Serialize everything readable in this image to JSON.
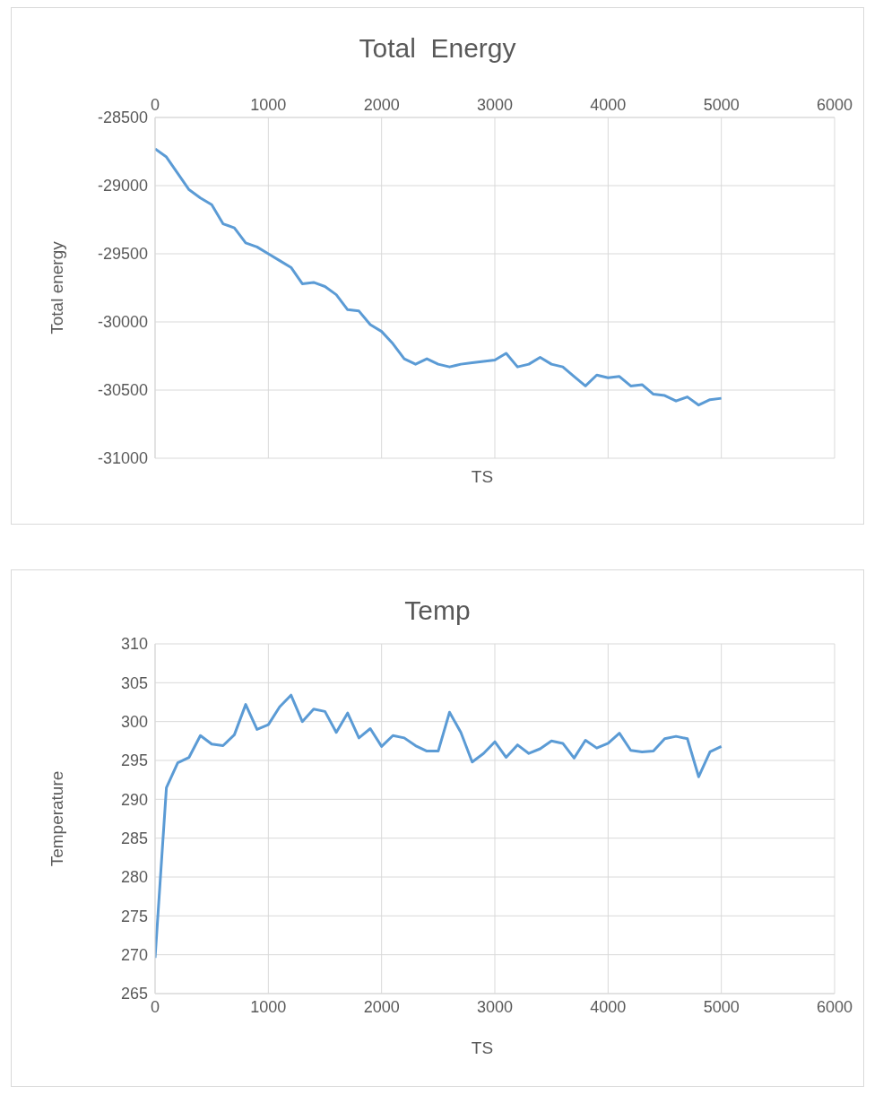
{
  "chart_data": [
    {
      "type": "line",
      "title": "Total  Energy",
      "xlabel": "TS",
      "ylabel": "Total energy",
      "x": [
        0,
        100,
        200,
        300,
        400,
        500,
        600,
        700,
        800,
        900,
        1000,
        1100,
        1200,
        1300,
        1400,
        1500,
        1600,
        1700,
        1800,
        1900,
        2000,
        2100,
        2200,
        2300,
        2400,
        2500,
        2600,
        2700,
        2800,
        2900,
        3000,
        3100,
        3200,
        3300,
        3400,
        3500,
        3600,
        3700,
        3800,
        3900,
        4000,
        4100,
        4200,
        4300,
        4400,
        4500,
        4600,
        4700,
        4800,
        4900,
        5000
      ],
      "series": [
        {
          "color": "#5b9bd5",
          "values": [
            -28730,
            -28790,
            -28910,
            -29030,
            -29090,
            -29140,
            -29280,
            -29310,
            -29420,
            -29450,
            -29500,
            -29550,
            -29600,
            -29720,
            -29710,
            -29740,
            -29800,
            -29910,
            -29920,
            -30020,
            -30070,
            -30160,
            -30270,
            -30310,
            -30270,
            -30310,
            -30330,
            -30310,
            -30300,
            -30290,
            -30280,
            -30230,
            -30330,
            -30310,
            -30260,
            -30310,
            -30330,
            -30400,
            -30470,
            -30390,
            -30410,
            -30400,
            -30470,
            -30460,
            -30530,
            -30540,
            -30580,
            -30550,
            -30610,
            -30570,
            -30560
          ]
        }
      ],
      "xlim": [
        0,
        6000
      ],
      "xticks": [
        0,
        1000,
        2000,
        3000,
        4000,
        5000,
        6000
      ],
      "ylim": [
        -31000,
        -28500
      ],
      "yticks": [
        -31000,
        -30500,
        -30000,
        -29500,
        -29000,
        -28500
      ],
      "grid": true,
      "legend": false,
      "marker": "none",
      "line_style": "solid"
    },
    {
      "type": "line",
      "title": "Temp",
      "xlabel": "TS",
      "ylabel": "Temperature",
      "x": [
        0,
        100,
        200,
        300,
        400,
        500,
        600,
        700,
        800,
        900,
        1000,
        1100,
        1200,
        1300,
        1400,
        1500,
        1600,
        1700,
        1800,
        1900,
        2000,
        2100,
        2200,
        2300,
        2400,
        2500,
        2600,
        2700,
        2800,
        2900,
        3000,
        3100,
        3200,
        3300,
        3400,
        3500,
        3600,
        3700,
        3800,
        3900,
        4000,
        4100,
        4200,
        4300,
        4400,
        4500,
        4600,
        4700,
        4800,
        4900,
        5000
      ],
      "series": [
        {
          "color": "#5b9bd5",
          "values": [
            269.6,
            291.5,
            294.7,
            295.4,
            298.2,
            297.1,
            296.9,
            298.3,
            302.2,
            299.0,
            299.6,
            301.9,
            303.4,
            300.0,
            301.6,
            301.3,
            298.6,
            301.1,
            297.9,
            299.1,
            296.8,
            298.2,
            297.9,
            296.9,
            296.2,
            296.2,
            301.2,
            298.6,
            294.8,
            295.9,
            297.4,
            295.4,
            297.0,
            295.9,
            296.5,
            297.5,
            297.2,
            295.3,
            297.6,
            296.6,
            297.2,
            298.5,
            296.3,
            296.1,
            296.2,
            297.8,
            298.1,
            297.8,
            292.9,
            296.1,
            296.8
          ]
        }
      ],
      "xlim": [
        0,
        6000
      ],
      "xticks": [
        0,
        1000,
        2000,
        3000,
        4000,
        5000,
        6000
      ],
      "ylim": [
        265,
        310
      ],
      "yticks": [
        265,
        270,
        275,
        280,
        285,
        290,
        295,
        300,
        305,
        310
      ],
      "grid": true,
      "legend": false,
      "marker": "none",
      "line_style": "solid"
    }
  ]
}
